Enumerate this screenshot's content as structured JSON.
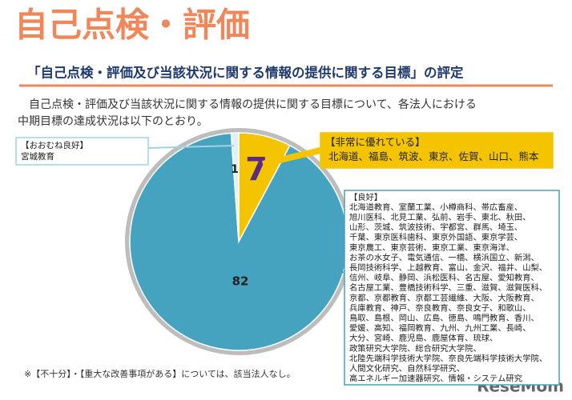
{
  "title": "自己点検・評価",
  "subtitle": "「自己点検・評価及び当該状況に関する情報の提供に関する目標」の評定",
  "description": [
    "自己点検・評価及び当該状況に関する情報の提供に関する目標について、各法人における",
    "中期目標の達成状況は以下のとおり。"
  ],
  "footnote": "※【不十分】・【重大な改善事項がある】については、該当法人なし。",
  "watermark": "ReseMom",
  "chart_data": {
    "type": "pie",
    "categories": [
      "【非常に優れている】",
      "【良好】",
      "【おおむね良好】"
    ],
    "values": [
      7,
      82,
      1
    ],
    "colors": [
      "#f5c400",
      "#45a3bf",
      "#dff0f6"
    ],
    "members": [
      [
        "北海道、福島、筑波、東京、佐賀、山口、熊本"
      ],
      [
        "北海道教育、室蘭工業、小樽商科、帯広畜産、",
        "旭川医科、北見工業、弘前、岩手、東北、秋田、",
        "山形、茨城、筑波技術、宇都宮、群馬、埼玉、",
        "千葉、東京医科歯科、東京外国語、東京学芸、",
        "東京農工、東京芸術、東京工業、東京海洋、",
        "お茶の水女子、電気通信、一橋、横浜国立、新潟、",
        "長岡技術科学、上越教育、富山、金沢、福井、山梨、",
        "信州、岐阜、静岡、浜松医科、名古屋、愛知教育、",
        "名古屋工業、豊橋技術科学、三重、滋賀、滋賀医科、",
        "京都、京都教育、京都工芸繊維、大阪、大阪教育、",
        "兵庫教育、神戸、奈良教育、奈良女子、和歌山、",
        "鳥取、島根、岡山、広島、徳島、鳴門教育、香川、",
        "愛媛、高知、福岡教育、九州、九州工業、長崎、",
        "大分、宮崎、鹿児島、鹿屋体育、琉球、",
        "政策研究大学院、総合研究大学院、",
        "北陸先端科学技術大学院、奈良先端科学技術大学院、",
        "人間文化研究、自然科学研究、",
        "高エネルギー加速器研究、情報・システム研究"
      ],
      [
        "宮城教育"
      ]
    ]
  }
}
